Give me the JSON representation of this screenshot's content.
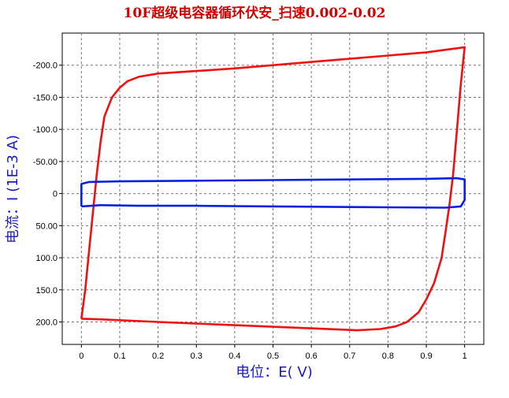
{
  "chart_data": {
    "type": "line",
    "title": "10F超级电容器循环伏安_扫速0.002-0.02",
    "xlabel": "电位：E( V)",
    "ylabel": "电流：I (1E-3 A)",
    "xlim": [
      -0.05,
      1.05
    ],
    "ylim": [
      -250,
      235
    ],
    "y_inverted": true,
    "grid": true,
    "x_ticks": [
      0,
      0.1,
      0.2,
      0.3,
      0.4,
      0.5,
      0.6,
      0.7,
      0.8,
      0.9,
      1
    ],
    "x_tick_labels": [
      "0",
      "0.1",
      "0.2",
      "0.3",
      "0.4",
      "0.5",
      "0.6",
      "0.7",
      "0.8",
      "0.9",
      "1"
    ],
    "y_ticks": [
      -200,
      -150,
      -100,
      -50,
      0,
      50,
      100,
      150,
      200
    ],
    "y_tick_labels": [
      "-200.0",
      "-150.0",
      "-100.0",
      "-50.00",
      "0",
      "50.00",
      "100.0",
      "150.0",
      "200.0"
    ],
    "series": [
      {
        "color": "#ee1111",
        "points": [
          [
            0,
            195
          ],
          [
            0.01,
            150
          ],
          [
            0.02,
            90
          ],
          [
            0.03,
            30
          ],
          [
            0.04,
            -30
          ],
          [
            0.05,
            -80
          ],
          [
            0.06,
            -120
          ],
          [
            0.08,
            -150
          ],
          [
            0.1,
            -165
          ],
          [
            0.12,
            -175
          ],
          [
            0.15,
            -182
          ],
          [
            0.2,
            -187
          ],
          [
            0.3,
            -191
          ],
          [
            0.4,
            -195
          ],
          [
            0.5,
            -200
          ],
          [
            0.6,
            -205
          ],
          [
            0.7,
            -210
          ],
          [
            0.8,
            -215
          ],
          [
            0.9,
            -220
          ],
          [
            1.0,
            -228
          ],
          [
            0.99,
            -170
          ],
          [
            0.98,
            -100
          ],
          [
            0.97,
            -30
          ],
          [
            0.96,
            20
          ],
          [
            0.95,
            60
          ],
          [
            0.94,
            100
          ],
          [
            0.92,
            140
          ],
          [
            0.9,
            165
          ],
          [
            0.88,
            185
          ],
          [
            0.85,
            200
          ],
          [
            0.82,
            207
          ],
          [
            0.78,
            211
          ],
          [
            0.72,
            213
          ],
          [
            0.6,
            210
          ],
          [
            0.4,
            205
          ],
          [
            0.2,
            200
          ],
          [
            0.05,
            196
          ],
          [
            0,
            195
          ]
        ]
      },
      {
        "color": "#0a1fe0",
        "points": [
          [
            0,
            20
          ],
          [
            0.0,
            -15
          ],
          [
            0.02,
            -18
          ],
          [
            0.1,
            -19
          ],
          [
            0.3,
            -20
          ],
          [
            0.5,
            -21
          ],
          [
            0.7,
            -22
          ],
          [
            0.9,
            -23
          ],
          [
            0.98,
            -24
          ],
          [
            1.0,
            -22
          ],
          [
            1.0,
            10
          ],
          [
            0.99,
            20
          ],
          [
            0.95,
            22
          ],
          [
            0.7,
            21
          ],
          [
            0.5,
            20
          ],
          [
            0.3,
            19
          ],
          [
            0.15,
            19
          ],
          [
            0.05,
            18
          ],
          [
            0,
            20
          ]
        ]
      }
    ]
  }
}
